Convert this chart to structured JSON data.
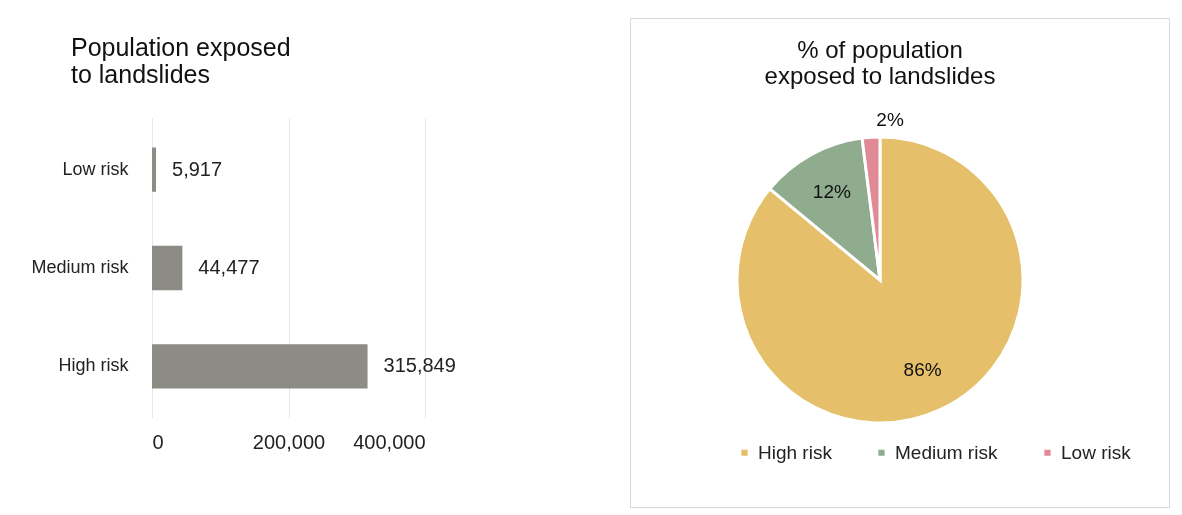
{
  "chart_data": [
    {
      "type": "bar",
      "title": "Population exposed to landslides",
      "orientation": "horizontal",
      "categories": [
        "Low risk",
        "Medium risk",
        "High risk"
      ],
      "values": [
        5917,
        44477,
        315849
      ],
      "value_labels": [
        "5,917",
        "44,477",
        "315,849"
      ],
      "color": "#8c8c85",
      "xlim": [
        0,
        400000
      ],
      "xticks": [
        {
          "value": 0,
          "label": "0"
        },
        {
          "value": 200000,
          "label": "200,000"
        },
        {
          "value": 400000,
          "label": "400,000"
        }
      ],
      "grid": "x"
    },
    {
      "type": "pie",
      "title": "% of population exposed to landslides",
      "categories": [
        "High risk",
        "Medium risk",
        "Low risk"
      ],
      "values": [
        86,
        12,
        2
      ],
      "colors": [
        "#e5bf6a",
        "#8fac8f",
        "#e08a96"
      ],
      "value_labels": [
        "86%",
        "12%",
        "2%"
      ],
      "legend": "bottom"
    }
  ]
}
